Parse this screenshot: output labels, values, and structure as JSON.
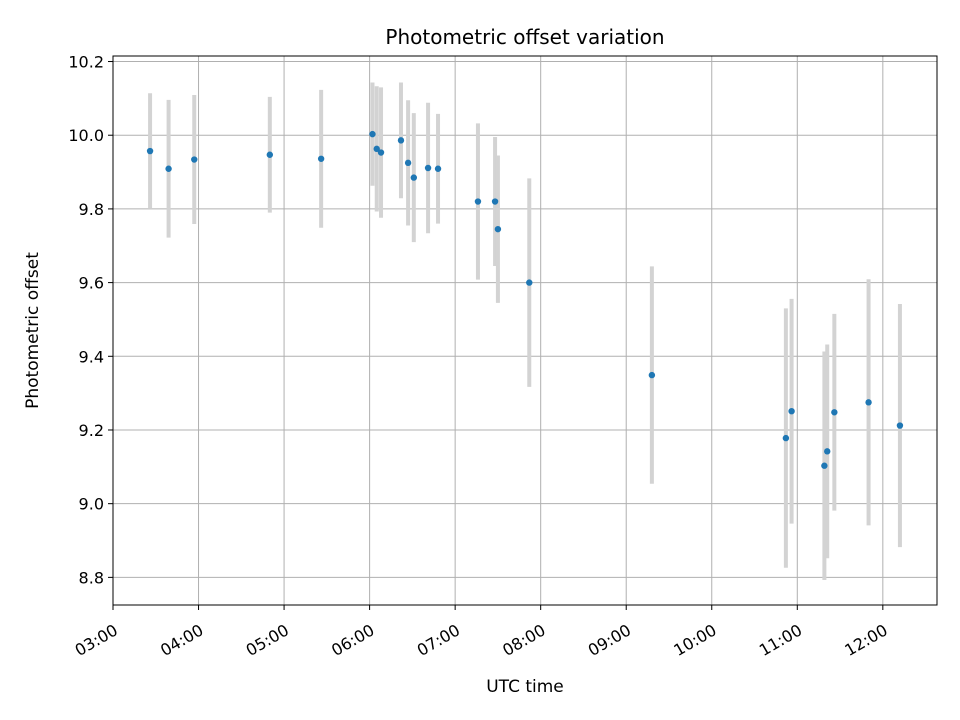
{
  "chart_data": {
    "type": "scatter",
    "title": "Photometric offset variation",
    "xlabel": "UTC time",
    "ylabel": "Photometric offset",
    "xlim": [
      "03:00",
      "12:38"
    ],
    "ylim": [
      8.725,
      10.215
    ],
    "x_ticks": [
      "03:00",
      "04:00",
      "05:00",
      "06:00",
      "07:00",
      "08:00",
      "09:00",
      "10:00",
      "11:00",
      "12:00"
    ],
    "y_ticks": [
      8.8,
      9.0,
      9.2,
      9.4,
      9.6,
      9.8,
      10.0,
      10.2
    ],
    "y_tick_labels": [
      "8.8",
      "9.0",
      "9.2",
      "9.4",
      "9.6",
      "9.8",
      "10.0",
      "10.2"
    ],
    "grid": true,
    "colors": {
      "points": "#1f77b4",
      "error_bars": "#d3d3d3",
      "grid": "#b0b0b0"
    },
    "points": [
      {
        "time": "03:26",
        "y": 9.957,
        "err": 0.157
      },
      {
        "time": "03:39",
        "y": 9.909,
        "err": 0.187
      },
      {
        "time": "03:57",
        "y": 9.934,
        "err": 0.175
      },
      {
        "time": "04:50",
        "y": 9.947,
        "err": 0.157
      },
      {
        "time": "05:26",
        "y": 9.936,
        "err": 0.187
      },
      {
        "time": "06:02",
        "y": 10.003,
        "err": 0.14
      },
      {
        "time": "06:05",
        "y": 9.963,
        "err": 0.17
      },
      {
        "time": "06:08",
        "y": 9.953,
        "err": 0.177
      },
      {
        "time": "06:22",
        "y": 9.986,
        "err": 0.157
      },
      {
        "time": "06:27",
        "y": 9.925,
        "err": 0.17
      },
      {
        "time": "06:31",
        "y": 9.885,
        "err": 0.175
      },
      {
        "time": "06:41",
        "y": 9.911,
        "err": 0.177
      },
      {
        "time": "06:48",
        "y": 9.909,
        "err": 0.149
      },
      {
        "time": "07:16",
        "y": 9.82,
        "err": 0.212
      },
      {
        "time": "07:28",
        "y": 9.82,
        "err": 0.175
      },
      {
        "time": "07:30",
        "y": 9.745,
        "err": 0.2
      },
      {
        "time": "07:52",
        "y": 9.6,
        "err": 0.283
      },
      {
        "time": "09:18",
        "y": 9.349,
        "err": 0.295
      },
      {
        "time": "10:52",
        "y": 9.178,
        "err": 0.352
      },
      {
        "time": "10:56",
        "y": 9.251,
        "err": 0.305
      },
      {
        "time": "11:19",
        "y": 9.103,
        "err": 0.31
      },
      {
        "time": "11:21",
        "y": 9.142,
        "err": 0.29
      },
      {
        "time": "11:26",
        "y": 9.248,
        "err": 0.267
      },
      {
        "time": "11:50",
        "y": 9.275,
        "err": 0.334
      },
      {
        "time": "12:12",
        "y": 9.212,
        "err": 0.33
      }
    ]
  }
}
